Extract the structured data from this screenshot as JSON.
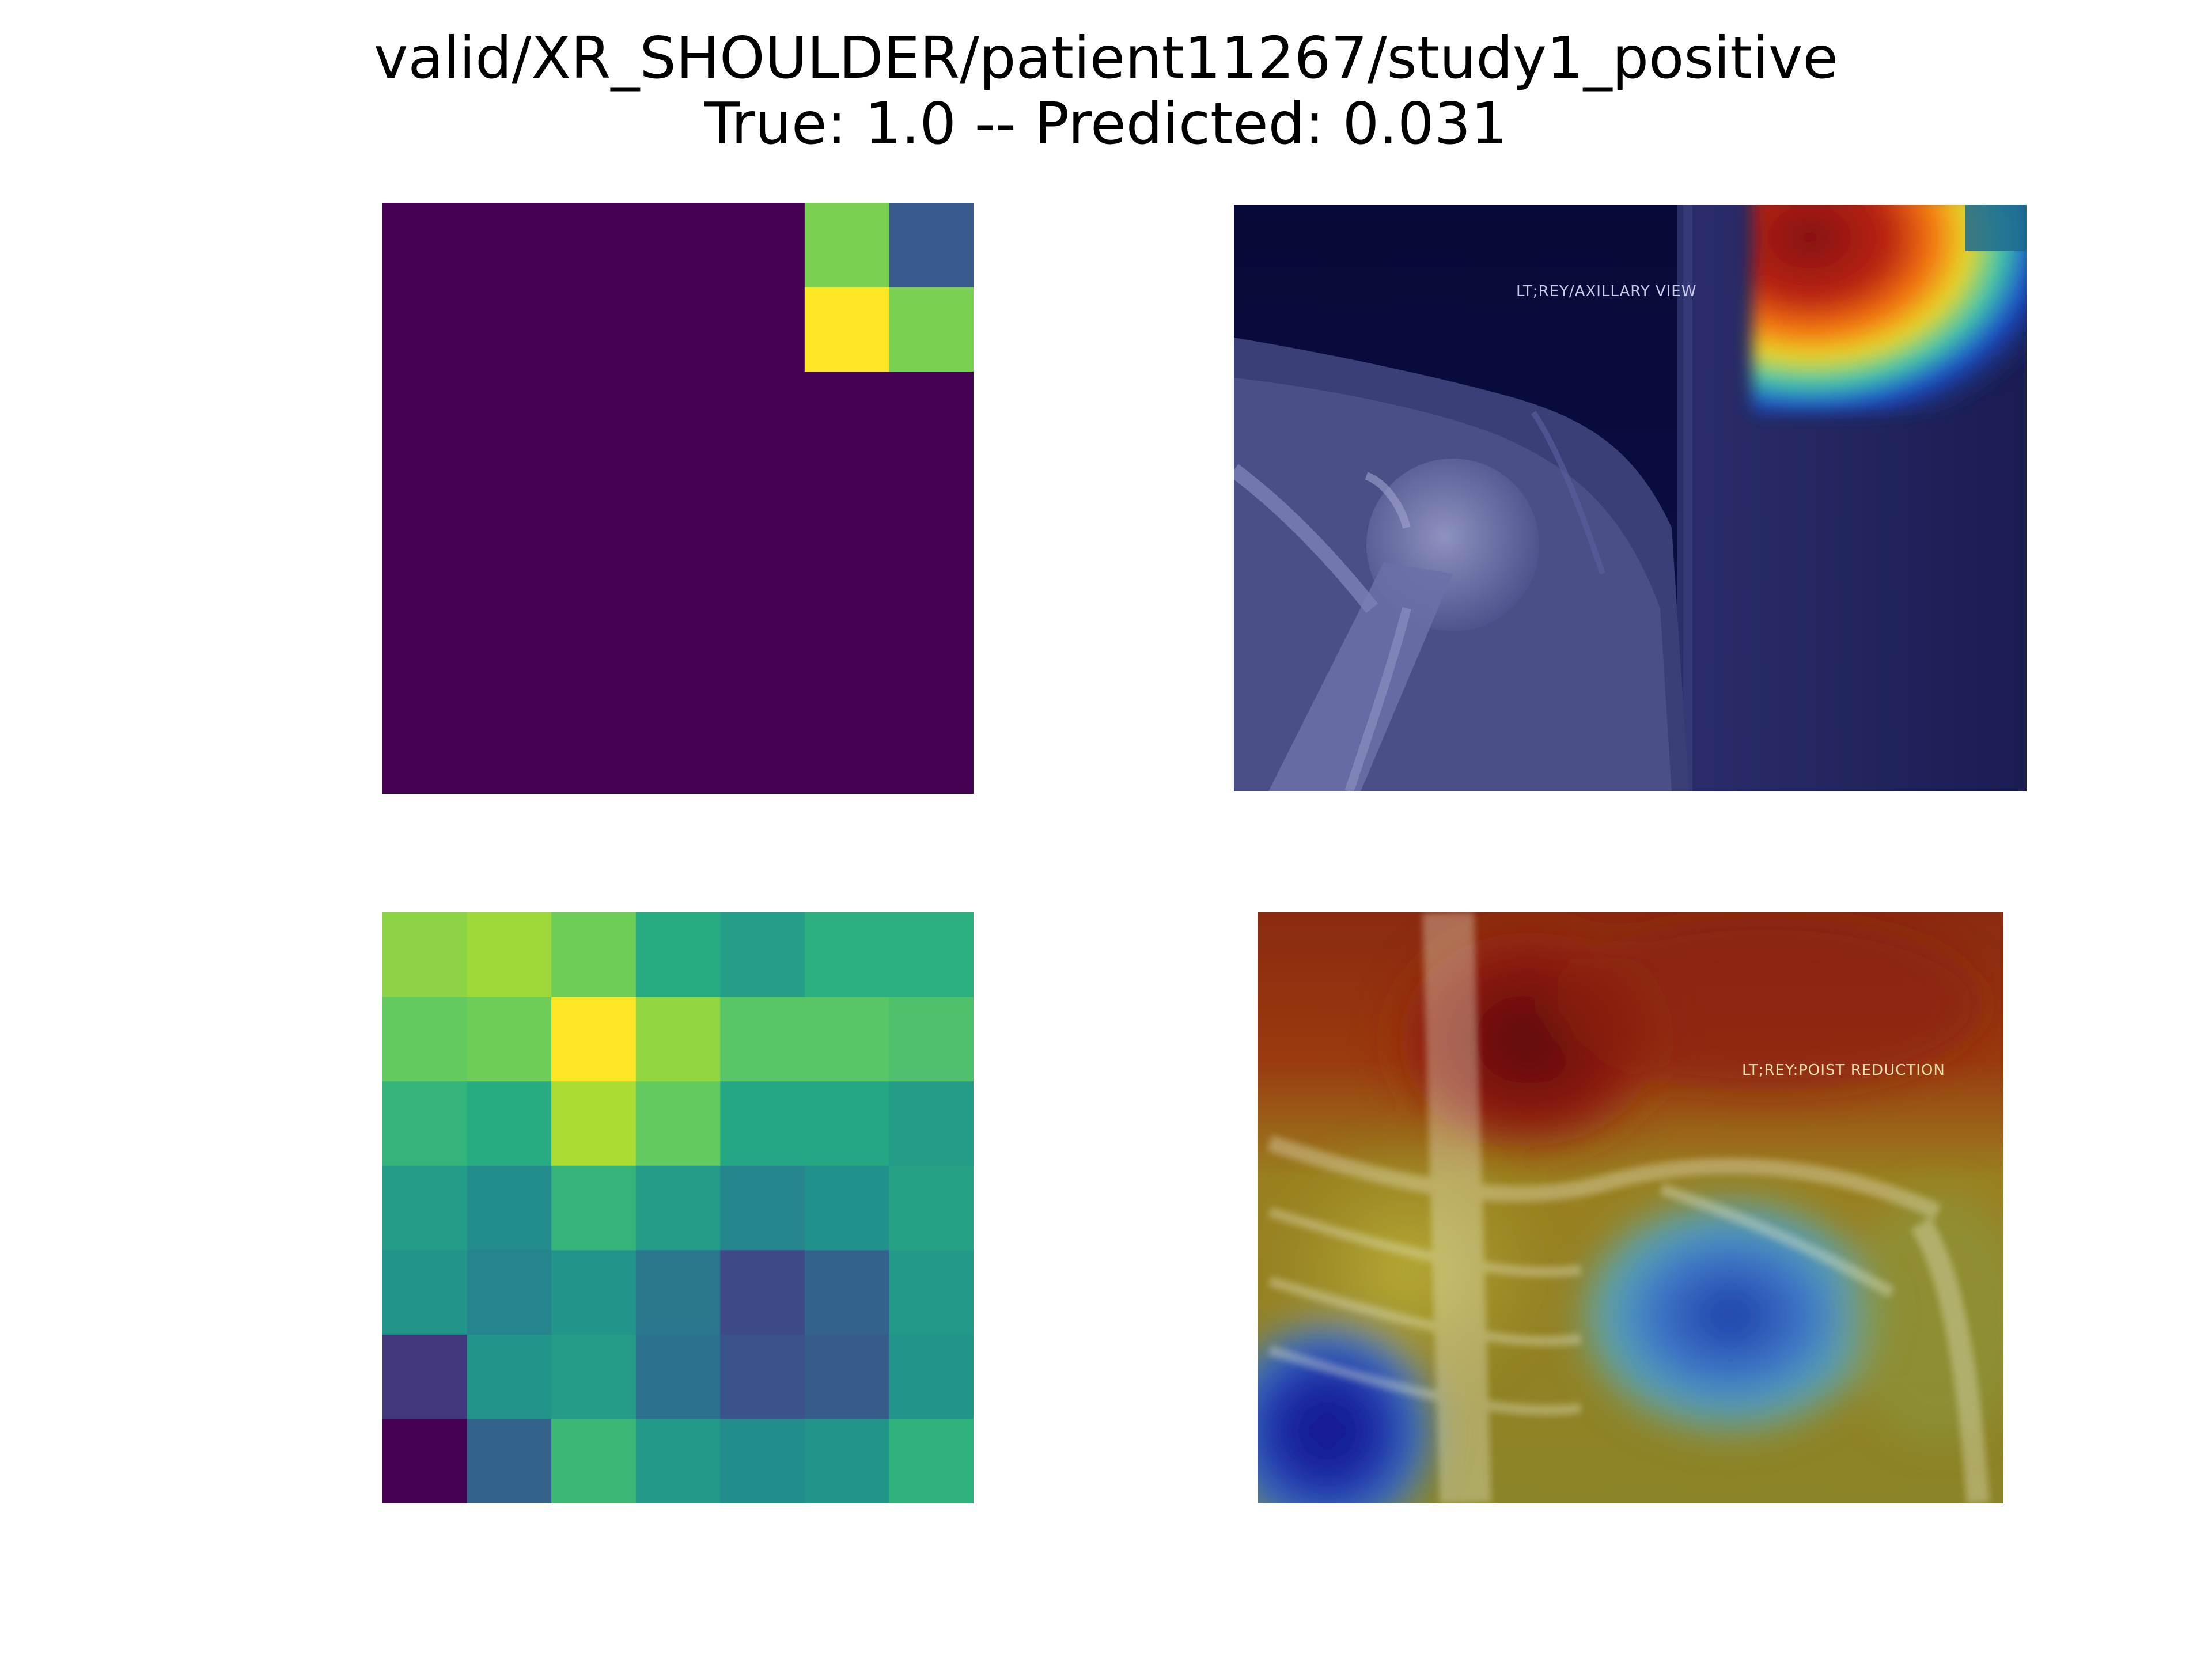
{
  "figure": {
    "title_line1": "valid/XR_SHOULDER/patient11267/study1_positive",
    "title_line2": "True: 1.0 -- Predicted: 0.031"
  },
  "panels": {
    "top_left_map": {
      "colormap": "viridis",
      "rows": 7,
      "cols": 7,
      "values": [
        [
          0,
          0,
          0,
          0,
          0,
          0.8,
          0.28
        ],
        [
          0,
          0,
          0,
          0,
          0,
          1.0,
          0.8
        ],
        [
          0,
          0,
          0,
          0,
          0,
          0,
          0
        ],
        [
          0,
          0,
          0,
          0,
          0,
          0,
          0
        ],
        [
          0,
          0,
          0,
          0,
          0,
          0,
          0
        ],
        [
          0,
          0,
          0,
          0,
          0,
          0,
          0
        ],
        [
          0,
          0,
          0,
          0,
          0,
          0,
          0
        ]
      ]
    },
    "top_right_overlay": {
      "description_colormap": "jet",
      "film_label": "LT;REY/AXILLARY VIEW"
    },
    "bottom_left_map": {
      "colormap": "viridis",
      "rows": 7,
      "cols": 7,
      "values": [
        [
          0.83,
          0.86,
          0.78,
          0.62,
          0.56,
          0.64,
          0.64
        ],
        [
          0.76,
          0.78,
          1.0,
          0.84,
          0.74,
          0.74,
          0.72
        ],
        [
          0.66,
          0.62,
          0.88,
          0.76,
          0.6,
          0.6,
          0.55
        ],
        [
          0.55,
          0.48,
          0.66,
          0.55,
          0.46,
          0.5,
          0.58
        ],
        [
          0.52,
          0.45,
          0.52,
          0.4,
          0.23,
          0.32,
          0.54
        ],
        [
          0.18,
          0.52,
          0.55,
          0.38,
          0.26,
          0.29,
          0.52
        ],
        [
          0.0,
          0.32,
          0.68,
          0.54,
          0.48,
          0.52,
          0.65
        ]
      ]
    },
    "bottom_right_overlay": {
      "description_colormap": "jet",
      "film_label": "LT;REY:POIST REDUCTION"
    }
  }
}
